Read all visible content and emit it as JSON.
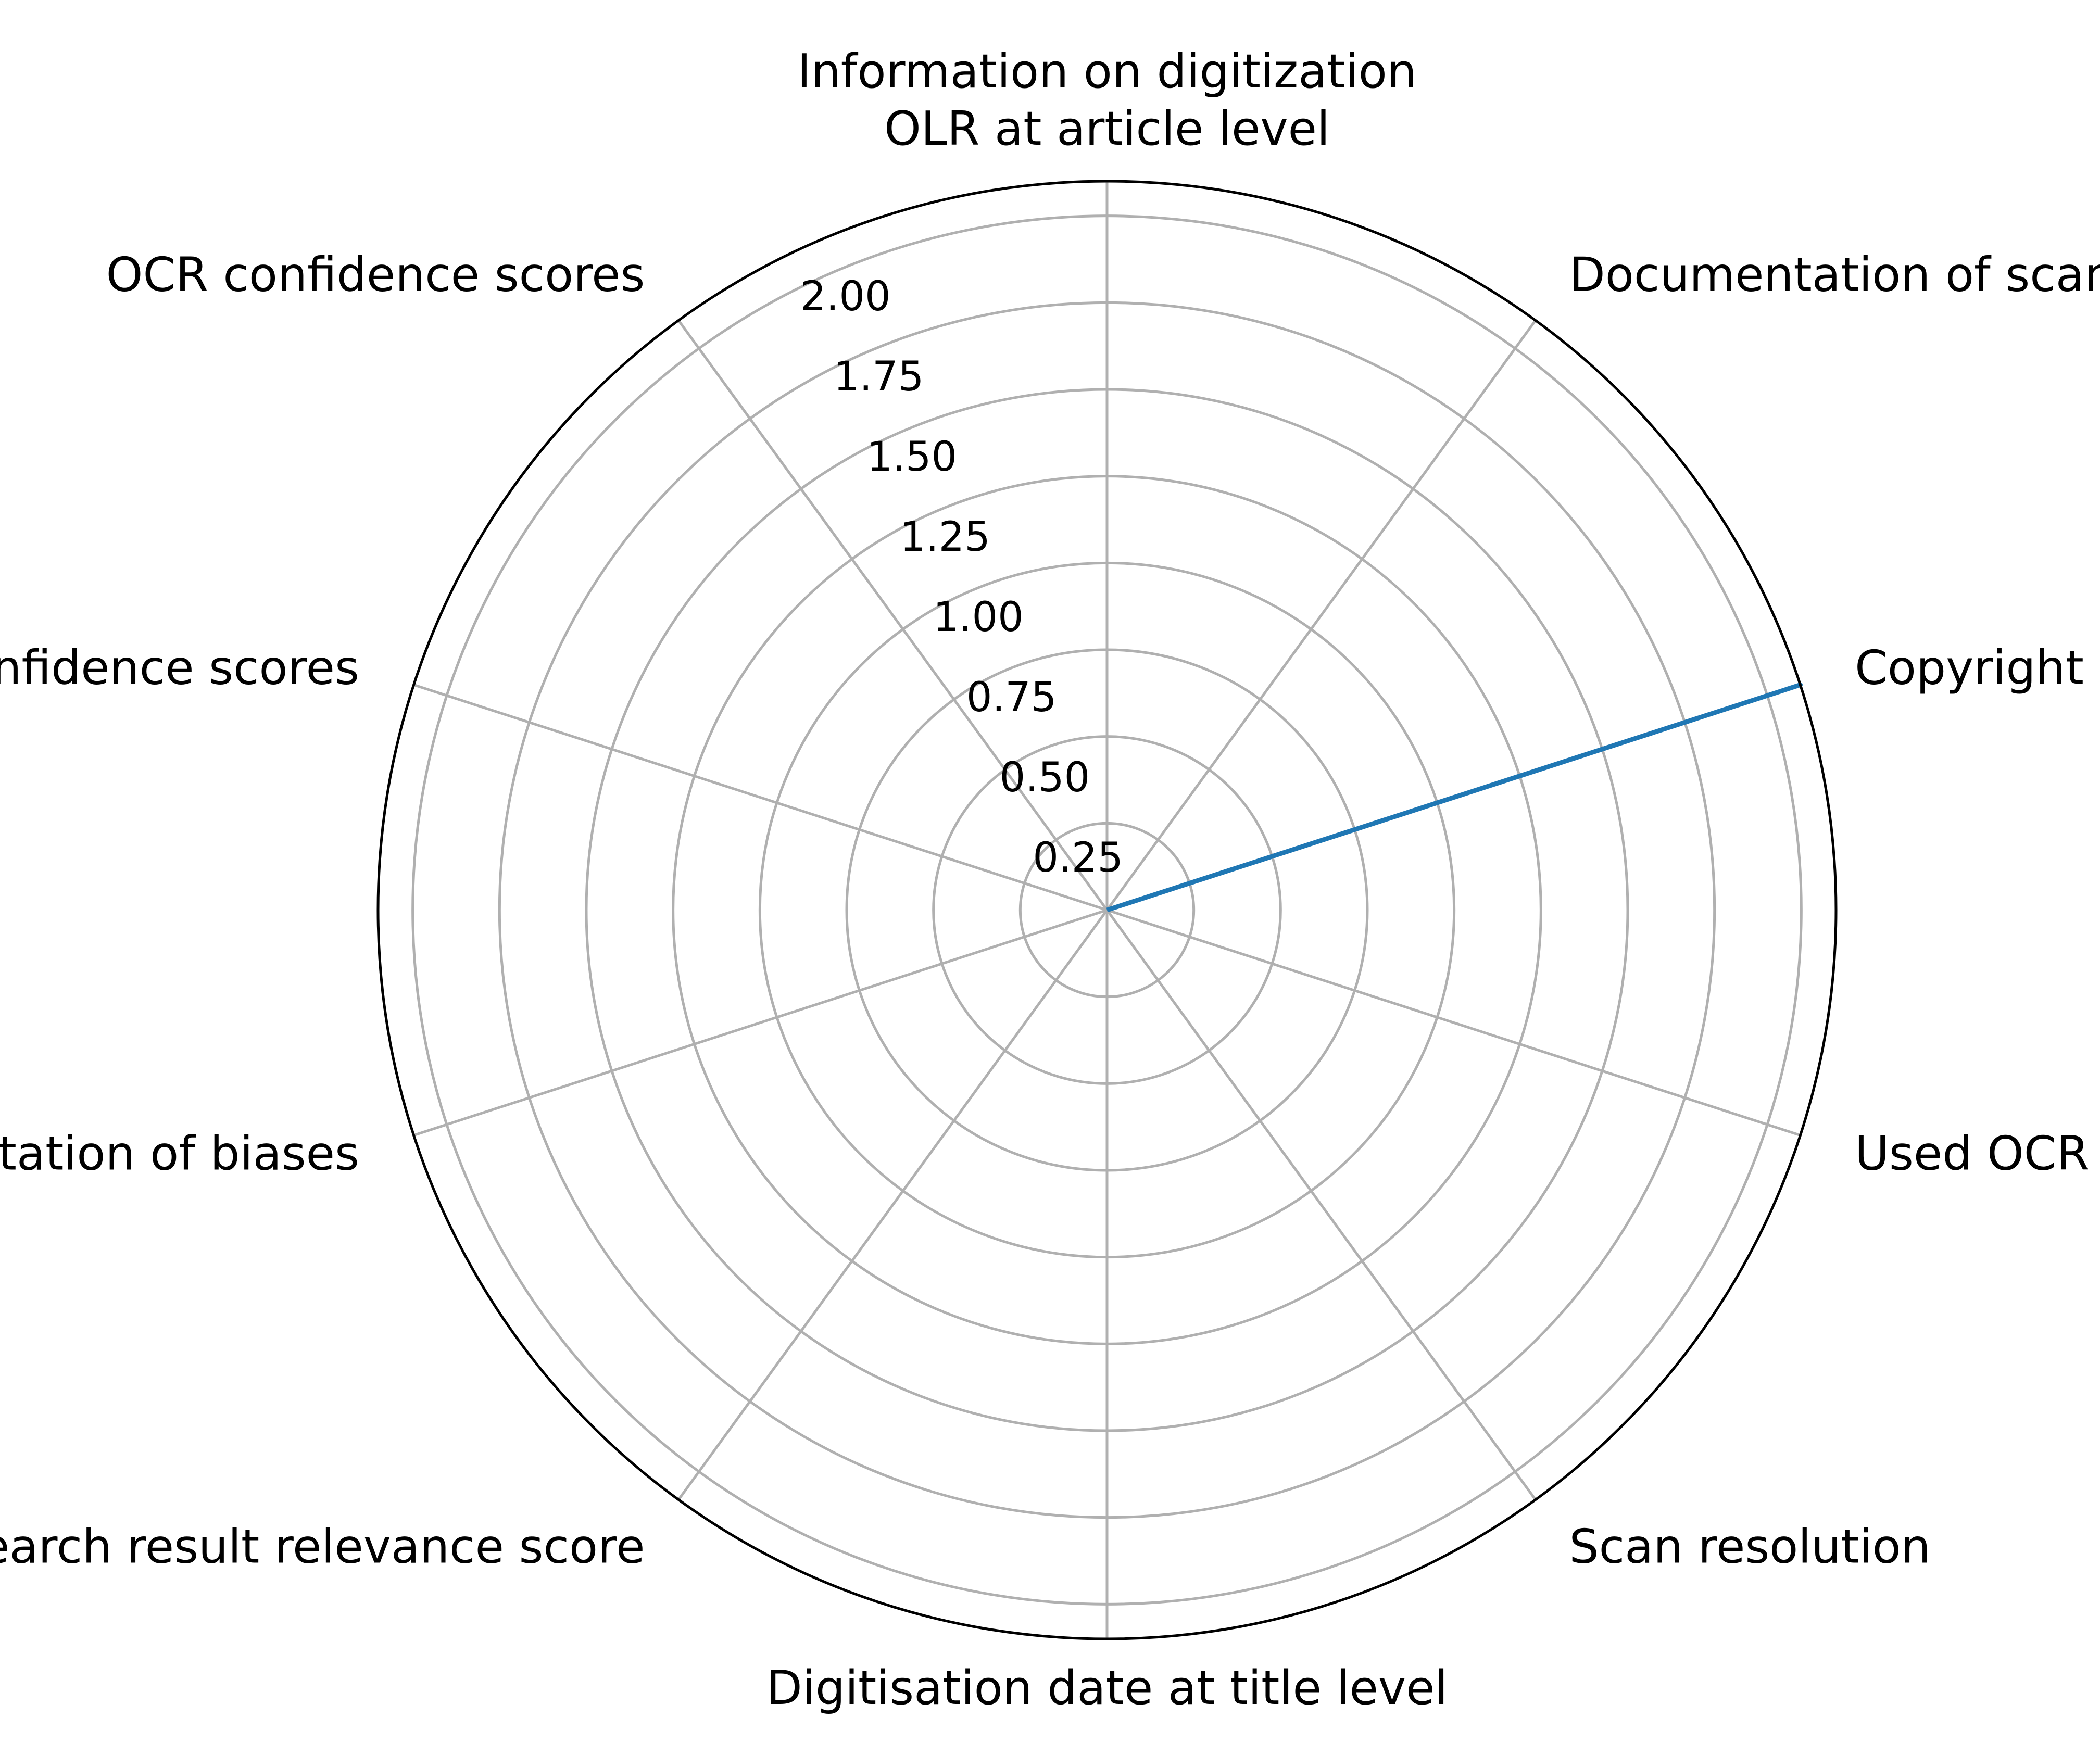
{
  "chart_data": {
    "type": "radar",
    "categories": [
      "Information on digitization\nOLR at article level",
      "Documentation of scan methods",
      "Copyright notice",
      "Used OCR tools",
      "Scan resolution",
      "Digitisation date at title level",
      "Search result relevance score",
      "Documentation of biases",
      "OLR confidence scores",
      "OCR confidence scores"
    ],
    "series": [
      {
        "values": [
          0,
          0,
          2.1,
          0,
          0,
          0,
          0,
          0,
          0,
          0
        ],
        "color": "#1f77b4"
      }
    ],
    "r_ticks": [
      "0.25",
      "0.50",
      "0.75",
      "1.00",
      "1.25",
      "1.50",
      "1.75",
      "2.00"
    ],
    "r_tick_values": [
      0.25,
      0.5,
      0.75,
      1.0,
      1.25,
      1.5,
      1.75,
      2.0
    ],
    "rlim": [
      0,
      2.1
    ],
    "grid": true,
    "colors": {
      "grid": "#b0b0b0",
      "frame": "#000000"
    }
  }
}
